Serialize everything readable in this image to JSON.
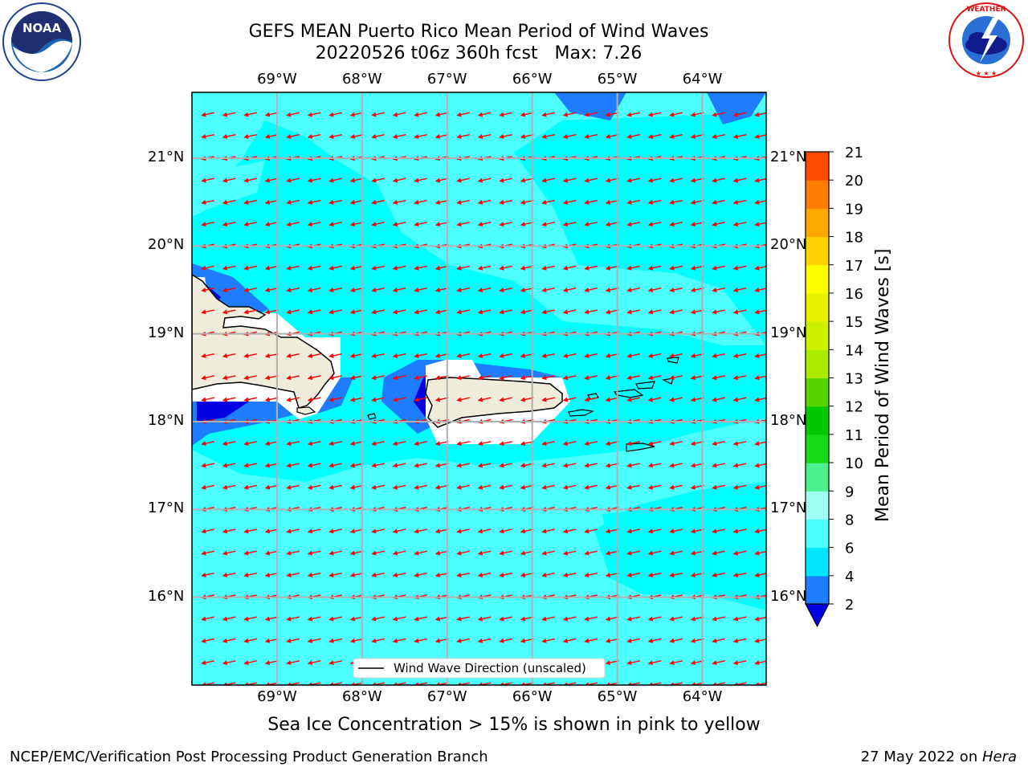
{
  "header": {
    "title_line1": "GEFS MEAN Puerto Rico Mean Period of Wind Waves",
    "title_line2": "20220526 t06z 360h fcst   Max: 7.26",
    "left_logo": "noaa-logo",
    "right_logo": "national-weather-service-logo"
  },
  "map": {
    "projection": "equirectangular",
    "lon_range": [
      -70.0,
      -63.25
    ],
    "lat_range": [
      15.0,
      21.75
    ],
    "grid": true,
    "lon_ticks": [
      {
        "value": -69,
        "label": "69°W"
      },
      {
        "value": -68,
        "label": "68°W"
      },
      {
        "value": -67,
        "label": "67°W"
      },
      {
        "value": -66,
        "label": "66°W"
      },
      {
        "value": -65,
        "label": "65°W"
      },
      {
        "value": -64,
        "label": "64°W"
      }
    ],
    "lat_ticks": [
      {
        "value": 21,
        "label": "21°N"
      },
      {
        "value": 20,
        "label": "20°N"
      },
      {
        "value": 19,
        "label": "19°N"
      },
      {
        "value": 18,
        "label": "18°N"
      },
      {
        "value": 17,
        "label": "17°N"
      },
      {
        "value": 16,
        "label": "16°N"
      }
    ],
    "background_color": "#00ffff",
    "land_color": "#efecdc",
    "legend_label": "Wind Wave Direction (unscaled)",
    "arrow_color": "#ff0000",
    "arrow_direction": "toward west-northwest"
  },
  "colorbar": {
    "title": "Mean Period of Wind Waves [s]",
    "ticks": [
      "2",
      "4",
      "6",
      "8",
      "9",
      "10",
      "11",
      "12",
      "13",
      "14",
      "15",
      "16",
      "17",
      "18",
      "19",
      "20",
      "21"
    ],
    "colors": [
      "#1e7cff",
      "#00e5ff",
      "#4dffff",
      "#9ffff5",
      "#4df08c",
      "#16d916",
      "#00c800",
      "#55d400",
      "#aaeb00",
      "#ccf000",
      "#e6f200",
      "#ffff00",
      "#ffd200",
      "#ffa800",
      "#ff7d00",
      "#ff4b00",
      "#ff1e00",
      "#ff0000"
    ],
    "under_color": "#0000e0"
  },
  "footer": {
    "note": "Sea Ice Concentration > 15% is shown in pink to yellow",
    "credit": "NCEP/EMC/Verification Post Processing Product Generation Branch",
    "date": "27 May 2022 on ",
    "machine": "Hera"
  }
}
